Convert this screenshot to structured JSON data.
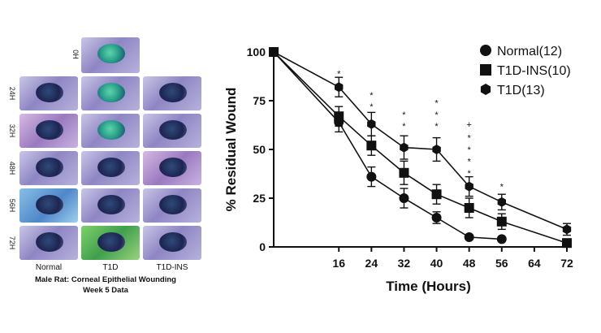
{
  "photo_panel": {
    "row_labels": [
      "0H",
      "24H",
      "32H",
      "48H",
      "56H",
      "72H"
    ],
    "column_labels": [
      "Normal",
      "T1D",
      "T1D-INS"
    ],
    "caption_line1": "Male Rat: Corneal Epithelial Wounding",
    "caption_line2": "Week 5 Data"
  },
  "chart_data": {
    "type": "line",
    "title": "",
    "xlabel": "Time (Hours)",
    "ylabel": "% Residual Wound",
    "x_ticks": [
      16,
      24,
      32,
      40,
      48,
      56,
      64,
      72
    ],
    "y_ticks": [
      0,
      25,
      50,
      75,
      100
    ],
    "xlim": [
      0,
      72
    ],
    "ylim": [
      0,
      100
    ],
    "legend_position": "top-right",
    "series": [
      {
        "name": "Normal(12)",
        "marker": "circle",
        "x": [
          0,
          16,
          24,
          32,
          40,
          48,
          56
        ],
        "y": [
          100,
          64,
          36,
          25,
          15,
          5,
          4
        ],
        "err": [
          0,
          5,
          5,
          5,
          3,
          0,
          0
        ]
      },
      {
        "name": "T1D-INS(10)",
        "marker": "square",
        "x": [
          0,
          16,
          24,
          32,
          40,
          48,
          56,
          72
        ],
        "y": [
          100,
          67,
          52,
          38,
          27,
          20,
          13,
          2
        ],
        "err": [
          0,
          5,
          5,
          6,
          5,
          5,
          4,
          0
        ]
      },
      {
        "name": "T1D(13)",
        "marker": "hexagon",
        "x": [
          0,
          16,
          24,
          32,
          40,
          48,
          56,
          72
        ],
        "y": [
          100,
          82,
          63,
          51,
          50,
          31,
          23,
          9
        ],
        "err": [
          0,
          5,
          6,
          6,
          6,
          5,
          4,
          3
        ]
      }
    ],
    "annotations": [
      {
        "x": 16,
        "y": 89,
        "text": "*"
      },
      {
        "x": 24,
        "y": 78,
        "text": "*"
      },
      {
        "x": 24,
        "y": 72,
        "text": "*"
      },
      {
        "x": 32,
        "y": 68,
        "text": "*"
      },
      {
        "x": 32,
        "y": 62,
        "text": "*"
      },
      {
        "x": 40,
        "y": 74,
        "text": "*"
      },
      {
        "x": 40,
        "y": 68,
        "text": "*"
      },
      {
        "x": 40,
        "y": 62,
        "text": "*"
      },
      {
        "x": 48,
        "y": 63,
        "text": "+"
      },
      {
        "x": 48,
        "y": 56,
        "text": "*"
      },
      {
        "x": 48,
        "y": 50,
        "text": "*"
      },
      {
        "x": 48,
        "y": 44,
        "text": "*"
      },
      {
        "x": 48,
        "y": 38,
        "text": "*"
      },
      {
        "x": 56,
        "y": 31,
        "text": "*"
      }
    ]
  }
}
